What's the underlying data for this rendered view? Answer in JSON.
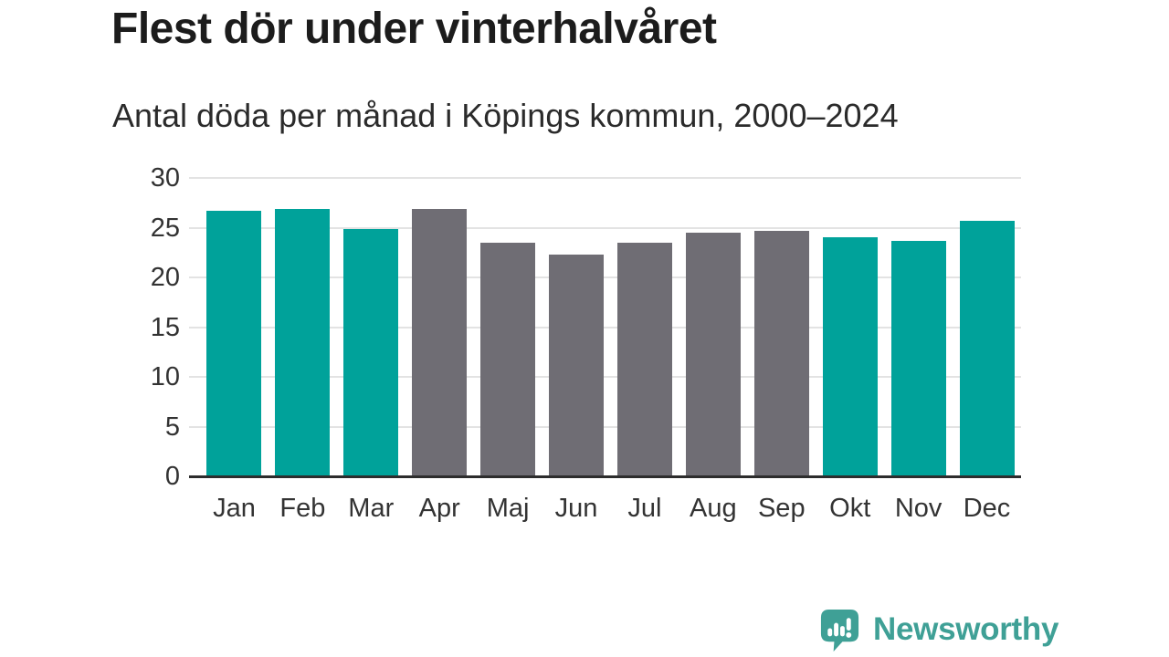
{
  "chart_data": {
    "type": "bar",
    "title": "Flest dör under vinterhalvåret",
    "subtitle": "Antal döda per månad i Köpings kommun, 2000–2024",
    "categories": [
      "Jan",
      "Feb",
      "Mar",
      "Apr",
      "Maj",
      "Jun",
      "Jul",
      "Aug",
      "Sep",
      "Okt",
      "Nov",
      "Dec"
    ],
    "values": [
      26.7,
      26.9,
      24.9,
      26.9,
      23.5,
      22.3,
      23.5,
      24.5,
      24.7,
      24.0,
      23.7,
      25.7
    ],
    "bar_color_keys": [
      "teal",
      "teal",
      "teal",
      "gray",
      "gray",
      "gray",
      "gray",
      "gray",
      "gray",
      "teal",
      "teal",
      "teal"
    ],
    "colors": {
      "teal": "#00a29a",
      "gray": "#6f6d74"
    },
    "xlabel": "",
    "ylabel": "",
    "ylim": [
      0,
      30
    ],
    "yticks": [
      0,
      5,
      10,
      15,
      20,
      25,
      30
    ],
    "grid": true,
    "legend": false,
    "highlight_meaning": "winter-half-year months in teal, summer months in gray"
  },
  "branding": {
    "logo_text": "Newsworthy",
    "logo_color": "#3fa096",
    "logo_icon": "speech-bubble-bar-chart-exclamation"
  }
}
